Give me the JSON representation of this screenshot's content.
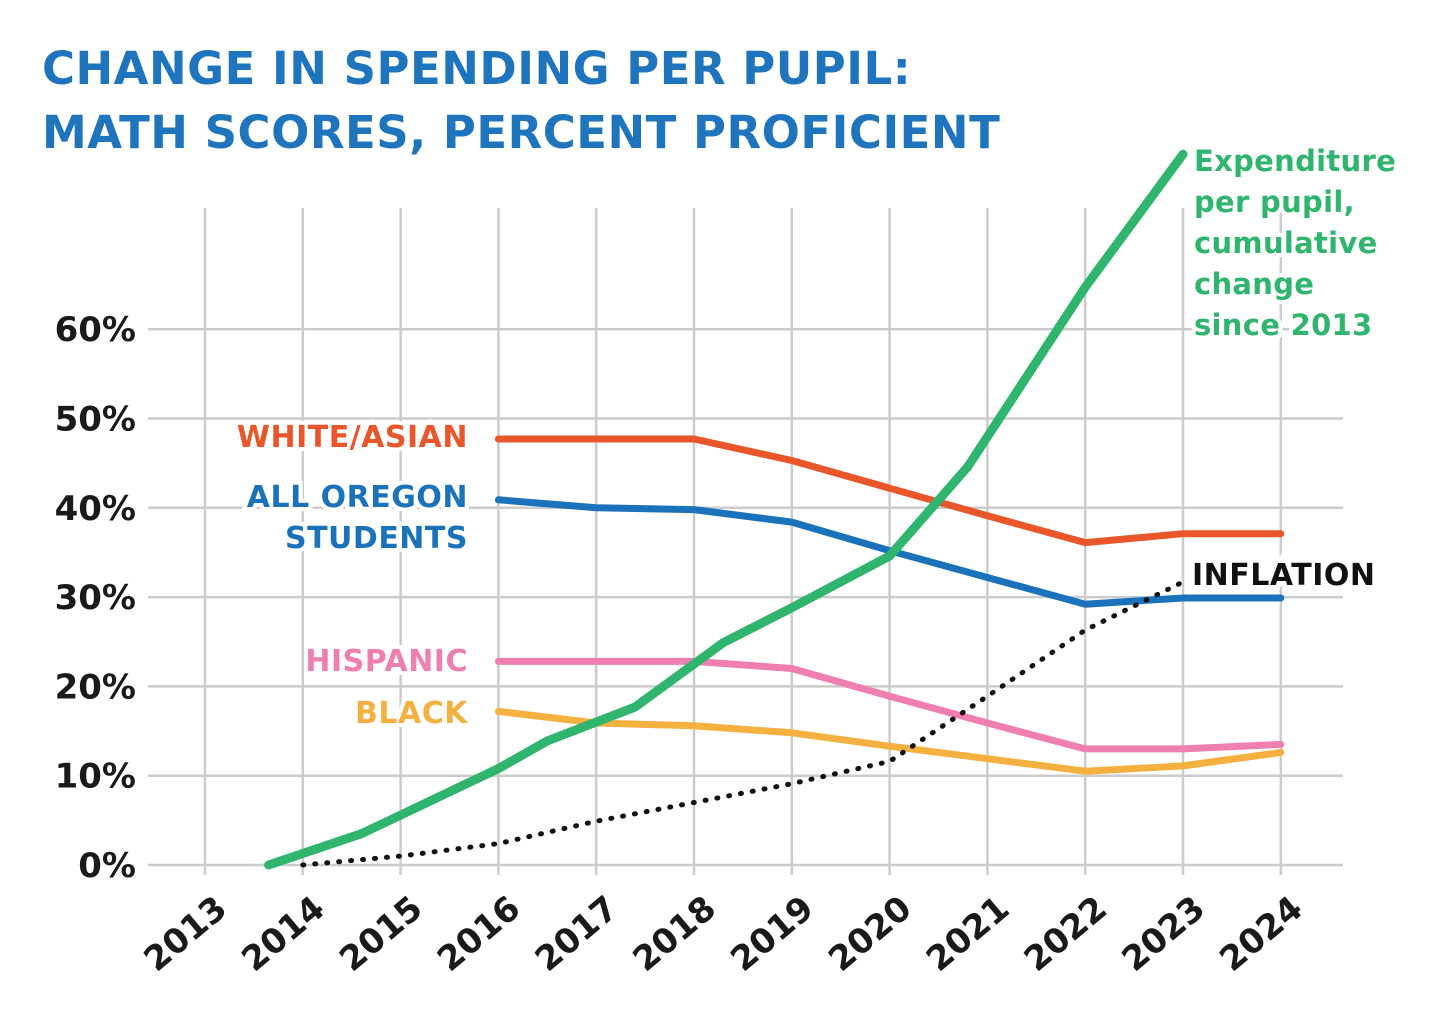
{
  "title": {
    "line1": "CHANGE IN SPENDING PER PUPIL:",
    "line2": "MATH SCORES, PERCENT PROFICIENT"
  },
  "chart_data": {
    "type": "line",
    "x": [
      2013,
      2014,
      2015,
      2016,
      2017,
      2018,
      2019,
      2020,
      2021,
      2022,
      2023,
      2024
    ],
    "x_tick_labels": [
      "2013",
      "2014",
      "2015",
      "2016",
      "2017",
      "2018",
      "2019",
      "2020",
      "2021",
      "2022",
      "2023",
      "2024"
    ],
    "y_tick_labels": [
      "0%",
      "10%",
      "20%",
      "30%",
      "40%",
      "50%",
      "60%"
    ],
    "ylim": [
      0,
      60
    ],
    "grid": true,
    "series": [
      {
        "name": "WHITE/ASIAN",
        "color": "#e8562a",
        "points": [
          [
            2016,
            47.7
          ],
          [
            2017,
            47.7
          ],
          [
            2018,
            47.7
          ],
          [
            2019,
            45.3
          ],
          [
            2020,
            42.2
          ],
          [
            2021,
            39.1
          ],
          [
            2022,
            36.1
          ],
          [
            2023,
            37.1
          ],
          [
            2024,
            37.1
          ]
        ]
      },
      {
        "name": "ALL OREGON\nSTUDENTS",
        "color": "#1a72bb",
        "points": [
          [
            2016,
            40.9
          ],
          [
            2017,
            40.0
          ],
          [
            2018,
            39.8
          ],
          [
            2019,
            38.4
          ],
          [
            2020,
            35.2
          ],
          [
            2021,
            32.2
          ],
          [
            2022,
            29.2
          ],
          [
            2023,
            29.9
          ],
          [
            2024,
            29.9
          ]
        ]
      },
      {
        "name": "HISPANIC",
        "color": "#ef7fb0",
        "points": [
          [
            2016,
            22.8
          ],
          [
            2017,
            22.8
          ],
          [
            2018,
            22.8
          ],
          [
            2019,
            22.0
          ],
          [
            2020,
            18.9
          ],
          [
            2021,
            15.9
          ],
          [
            2022,
            13.0
          ],
          [
            2023,
            13.0
          ],
          [
            2024,
            13.5
          ]
        ]
      },
      {
        "name": "BLACK",
        "color": "#f5b13f",
        "points": [
          [
            2016,
            17.2
          ],
          [
            2017,
            15.9
          ],
          [
            2018,
            15.6
          ],
          [
            2019,
            14.8
          ],
          [
            2020,
            13.3
          ],
          [
            2021,
            11.9
          ],
          [
            2022,
            10.5
          ],
          [
            2023,
            11.1
          ],
          [
            2024,
            12.6
          ]
        ]
      },
      {
        "name": "INFLATION",
        "color": "#111111",
        "dashed": true,
        "points": [
          [
            2014,
            0
          ],
          [
            2015,
            1.0
          ],
          [
            2016,
            2.4
          ],
          [
            2017,
            4.9
          ],
          [
            2018,
            7.0
          ],
          [
            2019,
            9.1
          ],
          [
            2020,
            11.6
          ],
          [
            2021,
            18.9
          ],
          [
            2022,
            26.3
          ],
          [
            2023,
            31.7
          ]
        ]
      },
      {
        "name": "Expenditure\nper pupil,\ncumulative\nchange\nsince 2013",
        "color": "#2fb56d",
        "points": [
          [
            2013.65,
            0
          ],
          [
            2014.6,
            3.5
          ],
          [
            2016,
            10.8
          ],
          [
            2016.5,
            13.9
          ],
          [
            2017.4,
            17.7
          ],
          [
            2018.3,
            24.9
          ],
          [
            2019,
            28.8
          ],
          [
            2020,
            34.6
          ],
          [
            2020.8,
            44.6
          ],
          [
            2022,
            64.7
          ],
          [
            2023,
            79.6
          ]
        ]
      }
    ]
  }
}
